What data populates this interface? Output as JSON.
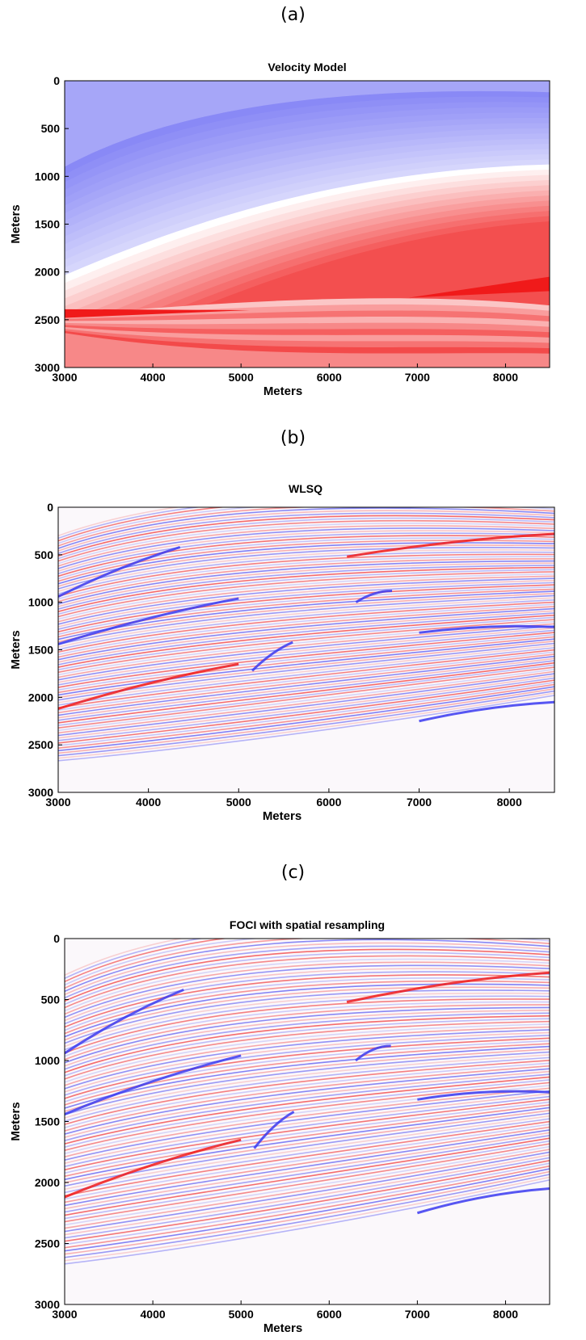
{
  "figure": {
    "panels": [
      {
        "caption": "(a)",
        "title": "Velocity Model",
        "xlabel": "Meters",
        "ylabel": "Meters",
        "xticks": [
          "3000",
          "4000",
          "5000",
          "6000",
          "7000",
          "8000"
        ],
        "yticks": [
          "0",
          "500",
          "1000",
          "1500",
          "2000",
          "2500",
          "3000"
        ],
        "xlim": [
          3000,
          8500
        ],
        "ylim": [
          0,
          3000
        ],
        "kind": "velocity"
      },
      {
        "caption": "(b)",
        "title": "WLSQ",
        "xlabel": "Meters",
        "ylabel": "Meters",
        "xticks": [
          "3000",
          "4000",
          "5000",
          "6000",
          "7000",
          "8000"
        ],
        "yticks": [
          "0",
          "500",
          "1000",
          "1500",
          "2000",
          "2500",
          "3000"
        ],
        "xlim": [
          3000,
          8500
        ],
        "ylim": [
          0,
          3000
        ],
        "kind": "seismic"
      },
      {
        "caption": "(c)",
        "title": "FOCI with spatial resampling",
        "xlabel": "Meters",
        "ylabel": "Meters",
        "xticks": [
          "3000",
          "4000",
          "5000",
          "6000",
          "7000",
          "8000"
        ],
        "yticks": [
          "0",
          "500",
          "1000",
          "1500",
          "2000",
          "2500",
          "3000"
        ],
        "xlim": [
          3000,
          8500
        ],
        "ylim": [
          0,
          3000
        ],
        "kind": "seismic"
      }
    ],
    "colors": {
      "blue": "#3a3af0",
      "red": "#f01a1a",
      "white": "#ffffff"
    }
  }
}
